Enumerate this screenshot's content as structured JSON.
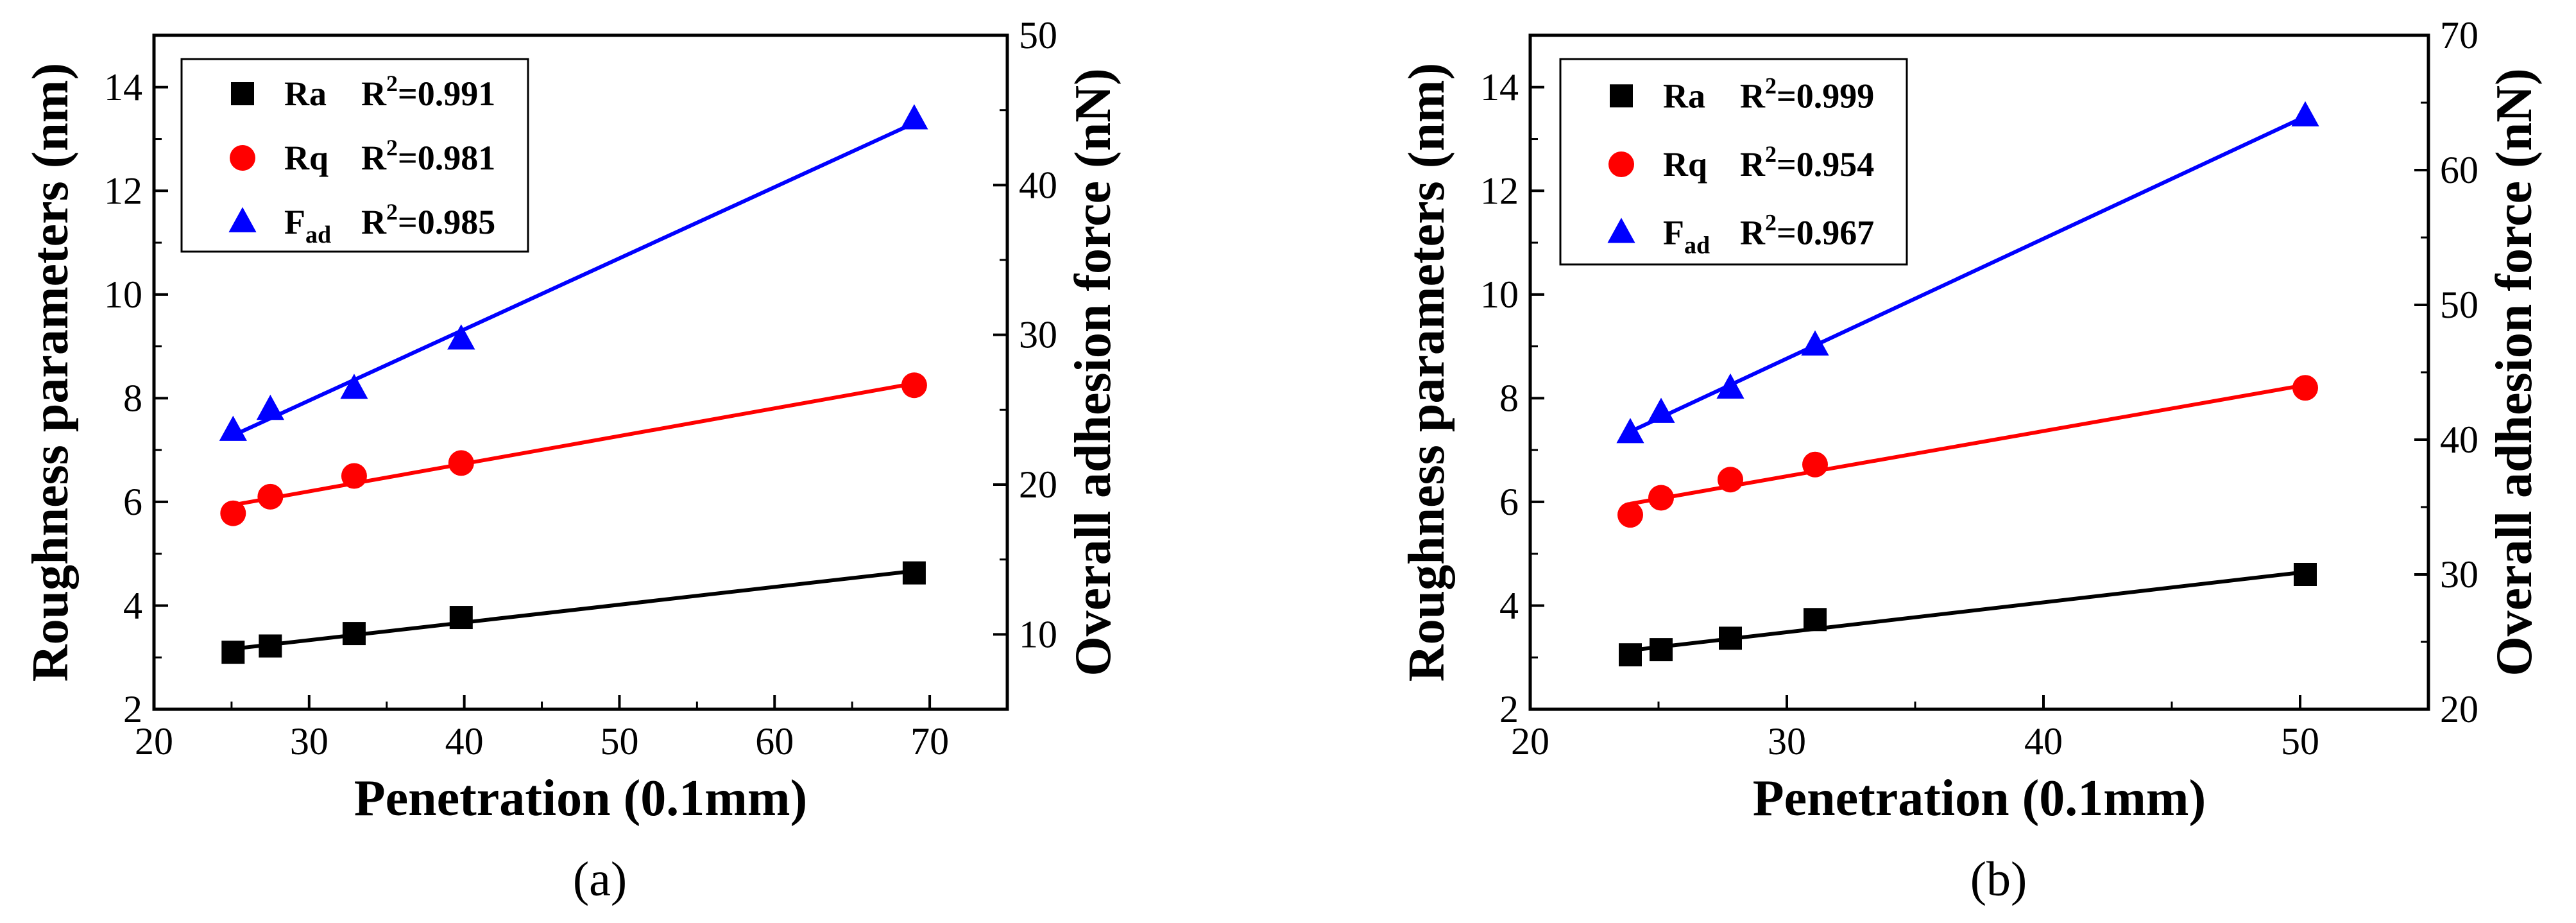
{
  "chart_data": [
    {
      "type": "scatter",
      "panel": "a",
      "caption": "(a)",
      "xlabel": "Penetration (0.1mm)",
      "ylabel_left": "Roughness parameters (nm)",
      "ylabel_right": "Overall adhesion force (nN)",
      "xlim": [
        20,
        75
      ],
      "ylim_left": [
        2,
        15
      ],
      "ylim_right": [
        5,
        50
      ],
      "x_ticks": [
        20,
        30,
        40,
        50,
        60,
        70
      ],
      "y_left_ticks": [
        2,
        4,
        6,
        8,
        10,
        12,
        14
      ],
      "y_right_ticks": [
        10,
        20,
        30,
        40,
        50
      ],
      "legend_position": "top-left",
      "series": [
        {
          "name": "Ra",
          "sub": "",
          "r2_label": "R",
          "r2_value": "=0.991",
          "axis": "left",
          "marker": "square",
          "color": "#000000",
          "x": [
            25.1,
            27.5,
            32.9,
            39.8,
            69.0
          ],
          "y": [
            3.1,
            3.22,
            3.46,
            3.77,
            4.63
          ]
        },
        {
          "name": "Rq",
          "sub": "",
          "r2_label": "R",
          "r2_value": "=0.981",
          "axis": "left",
          "marker": "circle",
          "color": "#ff0000",
          "x": [
            25.1,
            27.5,
            32.9,
            39.8,
            69.0
          ],
          "y": [
            5.78,
            6.1,
            6.5,
            6.75,
            8.25
          ]
        },
        {
          "name": "F",
          "sub": "ad",
          "r2_label": "R",
          "r2_value": "=0.985",
          "axis": "right",
          "marker": "triangle",
          "color": "#0000ff",
          "x": [
            25.1,
            27.5,
            32.9,
            39.8,
            69.0
          ],
          "y": [
            23.6,
            25.0,
            26.4,
            29.7,
            44.4
          ]
        }
      ]
    },
    {
      "type": "scatter",
      "panel": "b",
      "caption": "(b)",
      "xlabel": "Penetration (0.1mm)",
      "ylabel_left": "Roughness parameters (nm)",
      "ylabel_right": "Overall adhesion force (nN)",
      "xlim": [
        20,
        55
      ],
      "ylim_left": [
        2,
        15
      ],
      "ylim_right": [
        20,
        70
      ],
      "x_ticks": [
        20,
        30,
        40,
        50
      ],
      "y_left_ticks": [
        2,
        4,
        6,
        8,
        10,
        12,
        14
      ],
      "y_right_ticks": [
        20,
        30,
        40,
        50,
        60,
        70
      ],
      "legend_position": "top-left",
      "series": [
        {
          "name": "Ra",
          "sub": "",
          "r2_label": "R",
          "r2_value": "=0.999",
          "axis": "left",
          "marker": "square",
          "color": "#000000",
          "x": [
            23.9,
            25.1,
            27.8,
            31.1,
            50.2
          ],
          "y": [
            3.05,
            3.15,
            3.37,
            3.73,
            4.6
          ]
        },
        {
          "name": "Rq",
          "sub": "",
          "r2_label": "R",
          "r2_value": "=0.954",
          "axis": "left",
          "marker": "circle",
          "color": "#ff0000",
          "x": [
            23.9,
            25.1,
            27.8,
            31.1,
            50.2
          ],
          "y": [
            5.75,
            6.08,
            6.43,
            6.72,
            8.2
          ]
        },
        {
          "name": "F",
          "sub": "ad",
          "r2_label": "R",
          "r2_value": "=0.967",
          "axis": "right",
          "marker": "triangle",
          "color": "#0000ff",
          "x": [
            23.9,
            25.1,
            27.8,
            31.1,
            50.2
          ],
          "y": [
            40.5,
            42.0,
            43.8,
            47.0,
            64.0
          ]
        }
      ]
    }
  ]
}
